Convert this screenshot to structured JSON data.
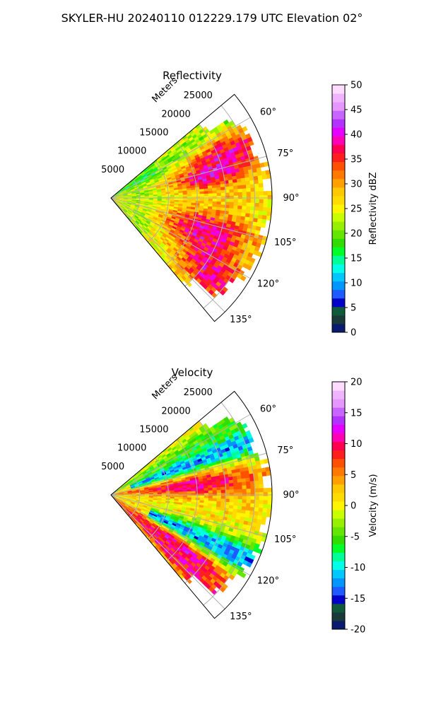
{
  "figure_title": "SKYLER-HU  20240110  012229.179 UTC Elevation 02°",
  "chart_data": [
    {
      "type": "heatmap",
      "subtype": "polar-sector",
      "title": "Reflectivity",
      "range_label": "Meters",
      "range_ticks": [
        5000,
        10000,
        15000,
        20000,
        25000
      ],
      "range_max": 28000,
      "azimuth_range": [
        50,
        140
      ],
      "azimuth_ticks": [
        "60°",
        "75°",
        "90°",
        "105°",
        "120°",
        "135°"
      ],
      "grid": true,
      "colorbar": {
        "label": "Reflectivity dBZ",
        "min": 0,
        "max": 50,
        "ticks": [
          0,
          5,
          10,
          15,
          20,
          25,
          30,
          35,
          40,
          45,
          50
        ],
        "colors": [
          "#0a1a6e",
          "#1a3a3a",
          "#0e5a3a",
          "#0000c8",
          "#1e5aff",
          "#0096ff",
          "#00c8ff",
          "#00ffe6",
          "#00ff96",
          "#00ff28",
          "#32dc00",
          "#64e600",
          "#96f000",
          "#c8ff00",
          "#fff500",
          "#ffdc00",
          "#ffc800",
          "#ffa000",
          "#ff7800",
          "#ff5000",
          "#ff1e1e",
          "#ff0050",
          "#ff00b4",
          "#e600ff",
          "#b432ff",
          "#c864ff",
          "#e696ff",
          "#f0b4ff",
          "#ffdcff"
        ]
      },
      "field_description": "Sector scan; broad region of 25-30 dBZ with band of 35-45 dBZ echoes between 60°-80° and 105°-135° at 10-25 km range"
    },
    {
      "type": "heatmap",
      "subtype": "polar-sector",
      "title": "Velocity",
      "range_label": "Meters",
      "range_ticks": [
        5000,
        10000,
        15000,
        20000,
        25000
      ],
      "range_max": 28000,
      "azimuth_range": [
        50,
        140
      ],
      "azimuth_ticks": [
        "60°",
        "75°",
        "90°",
        "105°",
        "120°",
        "135°"
      ],
      "grid": true,
      "colorbar": {
        "label": "Velocity (m/s)",
        "min": -20,
        "max": 20,
        "ticks": [
          -20,
          -15,
          -10,
          -5,
          0,
          5,
          10,
          15,
          20
        ],
        "colors": [
          "#0a1a6e",
          "#1a3a3a",
          "#0e5a3a",
          "#0000c8",
          "#1e5aff",
          "#0096ff",
          "#00c8ff",
          "#00ffe6",
          "#00ff96",
          "#00ff28",
          "#32dc00",
          "#64e600",
          "#96f000",
          "#c8ff00",
          "#fff500",
          "#ffdc00",
          "#ffc800",
          "#ffa000",
          "#ff7800",
          "#ff5000",
          "#ff1e1e",
          "#ff0050",
          "#ff00b4",
          "#e600ff",
          "#b432ff",
          "#c864ff",
          "#e696ff",
          "#f0b4ff",
          "#ffdcff"
        ]
      },
      "field_description": "Outbound (+5 to +15 m/s) band near 80°-100°, inbound (-5 to -15 m/s) bands near 65°-75° and 110°-120°, +10 to +15 m/s band near 125°-135°"
    }
  ]
}
